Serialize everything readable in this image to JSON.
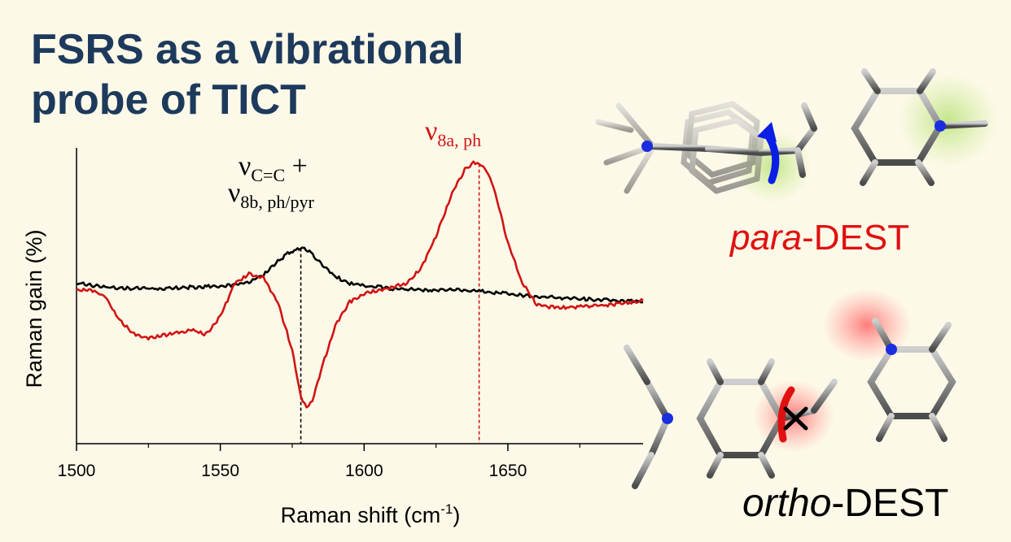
{
  "title": {
    "line1_bold": "FSRS",
    "line1_rest": " as a vibrational",
    "line2_rest": "probe of ",
    "line2_bold": "TICT"
  },
  "colors": {
    "title": "#1d3a5c",
    "black_trace": "#000000",
    "red_trace": "#d01414",
    "background": "#fdf9e8",
    "arrow_blue": "#0a1ee6",
    "arrow_red": "#e01010"
  },
  "molecules": {
    "para": {
      "italic": "para",
      "rest": "-DEST",
      "icons": [
        "ball-and-stick-molecule",
        "rotation-arrow-icon"
      ]
    },
    "ortho": {
      "italic": "ortho",
      "rest": "-DEST",
      "icons": [
        "ball-and-stick-molecule",
        "blocked-rotation-icon"
      ]
    }
  },
  "chart_data": {
    "type": "line",
    "xlabel": "Raman shift (cm",
    "xlabel_sup": "-1",
    "xlabel_end": ")",
    "ylabel": "Raman gain (%)",
    "xlim": [
      1500,
      1697
    ],
    "ylim": [
      -1.0,
      1.0
    ],
    "y_ticks_labeled": false,
    "grid": false,
    "x_ticks": [
      1500,
      1550,
      1600,
      1650
    ],
    "x_minor_ticks": [
      1525,
      1575,
      1625,
      1675
    ],
    "series": [
      {
        "color": "#000000",
        "x": [
          1500,
          1510,
          1520,
          1530,
          1540,
          1550,
          1555,
          1560,
          1565,
          1570,
          1574,
          1578,
          1581,
          1585,
          1590,
          1595,
          1600,
          1610,
          1620,
          1630,
          1640,
          1650,
          1660,
          1670,
          1680,
          1690,
          1697
        ],
        "y": [
          0.1,
          0.07,
          0.06,
          0.06,
          0.07,
          0.08,
          0.09,
          0.11,
          0.16,
          0.26,
          0.33,
          0.36,
          0.34,
          0.25,
          0.15,
          0.1,
          0.08,
          0.06,
          0.05,
          0.05,
          0.04,
          0.02,
          0.0,
          -0.01,
          -0.02,
          -0.03,
          -0.04
        ]
      },
      {
        "color": "#d01414",
        "x": [
          1500,
          1505,
          1510,
          1515,
          1520,
          1525,
          1530,
          1535,
          1540,
          1545,
          1550,
          1555,
          1560,
          1565,
          1570,
          1575,
          1578,
          1580,
          1582,
          1585,
          1590,
          1595,
          1600,
          1605,
          1610,
          1615,
          1620,
          1625,
          1630,
          1635,
          1638,
          1640,
          1642,
          1645,
          1650,
          1655,
          1660,
          1665,
          1670,
          1680,
          1690,
          1697
        ],
        "y": [
          0.05,
          0.05,
          0.0,
          -0.18,
          -0.28,
          -0.31,
          -0.29,
          -0.27,
          -0.25,
          -0.28,
          -0.15,
          0.1,
          0.17,
          0.14,
          -0.04,
          -0.4,
          -0.75,
          -0.83,
          -0.78,
          -0.55,
          -0.22,
          -0.04,
          0.02,
          0.05,
          0.07,
          0.1,
          0.22,
          0.45,
          0.74,
          0.95,
          1.0,
          0.99,
          0.96,
          0.82,
          0.4,
          0.1,
          -0.06,
          -0.08,
          -0.08,
          -0.07,
          -0.05,
          -0.03
        ]
      }
    ],
    "annotations": [
      {
        "id": "black-peak",
        "x": 1578,
        "line_color": "#000000",
        "text_color": "#000000",
        "nu": "ν",
        "sub1": "C=C",
        "plus": " +",
        "sub2": "8b, ph/pyr"
      },
      {
        "id": "red-peak",
        "x": 1640,
        "line_color": "#d01414",
        "text_color": "#d01414",
        "nu": "ν",
        "sub1": "8a, ph"
      }
    ]
  }
}
